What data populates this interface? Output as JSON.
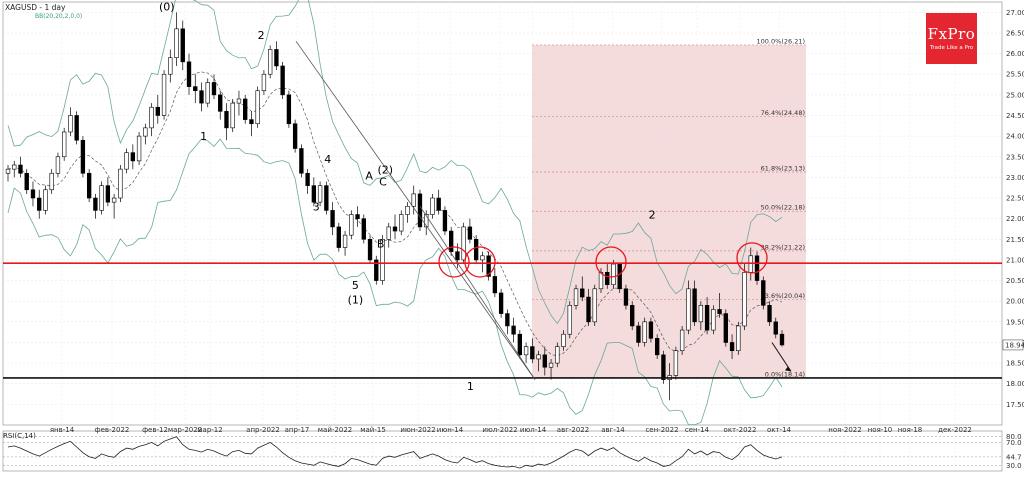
{
  "header": {
    "symbol_title": "XAGUSD - 1 day",
    "indicator_label": "BB(20,20,2,0,0)"
  },
  "logo": {
    "brand": "FxPro",
    "tagline": "Trade Like a Pro"
  },
  "rsi_panel": {
    "label": "RSI(C,14)",
    "levels": [
      "80.0",
      "70.0",
      "44.7",
      "30.0"
    ]
  },
  "chart_data": {
    "type": "candlestick",
    "title": "XAGUSD - 1 day",
    "ylim": [
      17.0,
      27.25
    ],
    "y_ticks": [
      "27.00",
      "26.50",
      "26.00",
      "25.50",
      "25.00",
      "24.50",
      "24.00",
      "23.50",
      "23.00",
      "22.50",
      "22.00",
      "21.50",
      "21.00",
      "20.50",
      "20.00",
      "19.50",
      "19.00",
      "18.50",
      "18.00",
      "17.50"
    ],
    "x_ticks": [
      "янв-14",
      "фев-2022",
      "фев-12",
      "мар-2022",
      "мар-12",
      "апр-2022",
      "апр-17",
      "май-2022",
      "май-15",
      "июн-2022",
      "июн-14",
      "июл-2022",
      "июл-14",
      "авг-2022",
      "авг-14",
      "сен-2022",
      "сен-14",
      "окт-2022",
      "окт-14",
      "ноя-2022",
      "ноя-10",
      "ноя-18",
      "дек-2022"
    ],
    "last_price_label": "18.94",
    "grid": true,
    "horizontal_lines": [
      {
        "name": "resistance",
        "price": 20.92,
        "color": "#e8171f"
      },
      {
        "name": "support",
        "price": 18.14,
        "color": "#111111"
      }
    ],
    "fibonacci_levels": [
      {
        "label": "100.0%(26.21)",
        "price": 26.21
      },
      {
        "label": "76.4%(24.48)",
        "price": 24.48
      },
      {
        "label": "61.8%(23.13)",
        "price": 23.13
      },
      {
        "label": "50.0%(22.18)",
        "price": 22.18
      },
      {
        "label": "38.2%(21.22)",
        "price": 21.22
      },
      {
        "label": "23.6%(20.04)",
        "price": 20.04
      },
      {
        "label": "0.0%(18.14)",
        "price": 18.14
      }
    ],
    "fib_zone_color": "#f2d5d6",
    "wave_labels": [
      {
        "text": "(0)",
        "date": "2022-03-08",
        "price": 27.05
      },
      {
        "text": "1",
        "date": "2022-03-24",
        "price": 23.9
      },
      {
        "text": "2",
        "date": "2022-04-18",
        "price": 26.35
      },
      {
        "text": "3",
        "date": "2022-05-12",
        "price": 22.2
      },
      {
        "text": "4",
        "date": "2022-05-17",
        "price": 23.35
      },
      {
        "text": "5",
        "date": "2022-05-29",
        "price": 20.3
      },
      {
        "text": "(1)",
        "date": "2022-05-29",
        "price": 19.95
      },
      {
        "text": "A",
        "date": "2022-06-04",
        "price": 22.95
      },
      {
        "text": "B",
        "date": "2022-06-09",
        "price": 21.3
      },
      {
        "text": "C",
        "date": "2022-06-10",
        "price": 22.8
      },
      {
        "text": "(2)",
        "date": "2022-06-11",
        "price": 23.1
      },
      {
        "text": "1",
        "date": "2022-07-18",
        "price": 17.85
      },
      {
        "text": "2",
        "date": "2022-10-05",
        "price": 22.0
      }
    ],
    "candles_ohlc": [
      [
        23.1,
        23.3,
        22.9,
        23.2
      ],
      [
        23.2,
        23.4,
        23.0,
        23.3
      ],
      [
        23.3,
        23.5,
        23.0,
        23.1
      ],
      [
        23.1,
        23.2,
        22.6,
        22.7
      ],
      [
        22.7,
        22.9,
        22.3,
        22.5
      ],
      [
        22.5,
        22.7,
        22.0,
        22.2
      ],
      [
        22.2,
        22.8,
        22.1,
        22.7
      ],
      [
        22.7,
        23.2,
        22.6,
        23.1
      ],
      [
        23.1,
        23.6,
        23.0,
        23.5
      ],
      [
        23.5,
        24.2,
        23.4,
        24.1
      ],
      [
        24.1,
        24.7,
        24.0,
        24.5
      ],
      [
        24.5,
        24.6,
        23.8,
        23.9
      ],
      [
        23.9,
        24.0,
        23.0,
        23.1
      ],
      [
        23.1,
        23.2,
        22.4,
        22.5
      ],
      [
        22.5,
        22.6,
        22.0,
        22.2
      ],
      [
        22.2,
        22.9,
        22.1,
        22.8
      ],
      [
        22.8,
        23.0,
        22.3,
        22.4
      ],
      [
        22.4,
        22.6,
        22.0,
        22.5
      ],
      [
        22.5,
        23.3,
        22.4,
        23.2
      ],
      [
        23.2,
        23.7,
        23.1,
        23.6
      ],
      [
        23.6,
        23.8,
        23.2,
        23.4
      ],
      [
        23.4,
        24.1,
        23.3,
        24.0
      ],
      [
        24.0,
        24.3,
        23.8,
        24.2
      ],
      [
        24.2,
        24.8,
        24.0,
        24.7
      ],
      [
        24.7,
        25.0,
        24.3,
        24.5
      ],
      [
        24.5,
        25.6,
        24.4,
        25.5
      ],
      [
        25.5,
        26.1,
        25.3,
        25.9
      ],
      [
        25.9,
        27.0,
        25.7,
        26.6
      ],
      [
        26.6,
        26.8,
        25.6,
        25.8
      ],
      [
        25.8,
        26.0,
        25.0,
        25.2
      ],
      [
        25.2,
        25.5,
        24.8,
        25.1
      ],
      [
        25.1,
        25.3,
        24.6,
        24.8
      ],
      [
        24.8,
        25.4,
        24.7,
        25.3
      ],
      [
        25.3,
        25.5,
        24.9,
        25.0
      ],
      [
        25.0,
        25.1,
        24.4,
        24.6
      ],
      [
        24.6,
        24.8,
        23.9,
        24.2
      ],
      [
        24.2,
        24.9,
        24.1,
        24.8
      ],
      [
        24.8,
        25.1,
        24.5,
        24.9
      ],
      [
        24.9,
        25.0,
        24.3,
        24.4
      ],
      [
        24.4,
        24.6,
        24.0,
        24.3
      ],
      [
        24.3,
        25.2,
        24.2,
        25.1
      ],
      [
        25.1,
        25.6,
        25.0,
        25.5
      ],
      [
        25.5,
        26.2,
        25.4,
        26.1
      ],
      [
        26.1,
        26.3,
        25.6,
        25.7
      ],
      [
        25.7,
        25.8,
        24.9,
        25.0
      ],
      [
        25.0,
        25.1,
        24.2,
        24.3
      ],
      [
        24.3,
        24.4,
        23.6,
        23.7
      ],
      [
        23.7,
        23.8,
        23.0,
        23.1
      ],
      [
        23.1,
        23.2,
        22.6,
        22.8
      ],
      [
        22.8,
        23.0,
        22.3,
        22.4
      ],
      [
        22.4,
        22.9,
        22.3,
        22.8
      ],
      [
        22.8,
        22.9,
        22.1,
        22.2
      ],
      [
        22.2,
        22.4,
        21.6,
        21.8
      ],
      [
        21.8,
        21.9,
        21.2,
        21.3
      ],
      [
        21.3,
        21.7,
        21.1,
        21.6
      ],
      [
        21.6,
        22.2,
        21.5,
        22.1
      ],
      [
        22.1,
        22.3,
        21.8,
        22.0
      ],
      [
        22.0,
        22.1,
        21.4,
        21.5
      ],
      [
        21.5,
        21.6,
        20.9,
        21.0
      ],
      [
        21.0,
        21.1,
        20.4,
        20.5
      ],
      [
        20.5,
        21.6,
        20.4,
        21.5
      ],
      [
        21.5,
        21.9,
        21.3,
        21.8
      ],
      [
        21.8,
        22.1,
        21.5,
        21.7
      ],
      [
        21.7,
        22.2,
        21.6,
        22.1
      ],
      [
        22.1,
        22.4,
        21.9,
        22.3
      ],
      [
        22.3,
        22.8,
        22.1,
        22.6
      ],
      [
        22.6,
        22.7,
        21.7,
        21.8
      ],
      [
        21.8,
        22.2,
        21.6,
        22.1
      ],
      [
        22.1,
        22.6,
        22.0,
        22.5
      ],
      [
        22.5,
        22.7,
        22.1,
        22.2
      ],
      [
        22.2,
        22.3,
        21.6,
        21.7
      ],
      [
        21.7,
        21.8,
        21.1,
        21.2
      ],
      [
        21.2,
        21.4,
        20.8,
        21.0
      ],
      [
        21.0,
        21.9,
        20.9,
        21.8
      ],
      [
        21.8,
        22.0,
        21.4,
        21.5
      ],
      [
        21.5,
        21.6,
        20.9,
        21.0
      ],
      [
        21.0,
        21.2,
        20.7,
        21.1
      ],
      [
        21.1,
        21.2,
        20.5,
        20.6
      ],
      [
        20.6,
        20.8,
        20.1,
        20.2
      ],
      [
        20.2,
        20.3,
        19.6,
        19.7
      ],
      [
        19.7,
        19.8,
        19.2,
        19.4
      ],
      [
        19.4,
        19.6,
        19.0,
        19.2
      ],
      [
        19.2,
        19.3,
        18.6,
        18.7
      ],
      [
        18.7,
        19.0,
        18.5,
        18.9
      ],
      [
        18.9,
        19.1,
        18.5,
        18.6
      ],
      [
        18.6,
        18.8,
        18.3,
        18.7
      ],
      [
        18.7,
        18.9,
        18.2,
        18.4
      ],
      [
        18.4,
        18.6,
        18.1,
        18.5
      ],
      [
        18.5,
        19.0,
        18.4,
        18.9
      ],
      [
        18.9,
        19.3,
        18.8,
        19.2
      ],
      [
        19.2,
        20.0,
        19.1,
        19.9
      ],
      [
        19.9,
        20.4,
        19.8,
        20.3
      ],
      [
        20.3,
        20.6,
        20.0,
        20.1
      ],
      [
        20.1,
        20.3,
        19.4,
        19.5
      ],
      [
        19.5,
        20.4,
        19.4,
        20.3
      ],
      [
        20.3,
        20.8,
        20.2,
        20.7
      ],
      [
        20.7,
        20.9,
        20.3,
        20.4
      ],
      [
        20.4,
        21.0,
        20.3,
        20.9
      ],
      [
        20.9,
        20.9,
        20.2,
        20.3
      ],
      [
        20.3,
        20.4,
        19.8,
        19.9
      ],
      [
        19.9,
        20.0,
        19.3,
        19.4
      ],
      [
        19.4,
        19.5,
        18.9,
        19.0
      ],
      [
        19.0,
        19.6,
        18.9,
        19.5
      ],
      [
        19.5,
        19.6,
        19.0,
        19.1
      ],
      [
        19.1,
        19.2,
        18.6,
        18.7
      ],
      [
        18.7,
        18.8,
        18.0,
        18.1
      ],
      [
        18.1,
        18.5,
        17.6,
        18.2
      ],
      [
        18.2,
        18.9,
        18.1,
        18.8
      ],
      [
        18.8,
        19.4,
        18.7,
        19.3
      ],
      [
        19.3,
        20.5,
        19.2,
        20.3
      ],
      [
        20.3,
        20.5,
        19.4,
        19.5
      ],
      [
        19.5,
        20.0,
        19.3,
        19.9
      ],
      [
        19.9,
        20.1,
        19.2,
        19.3
      ],
      [
        19.3,
        19.9,
        19.2,
        19.8
      ],
      [
        19.8,
        20.2,
        19.6,
        19.7
      ],
      [
        19.7,
        19.8,
        18.9,
        19.0
      ],
      [
        19.0,
        19.2,
        18.6,
        18.8
      ],
      [
        18.8,
        19.5,
        18.7,
        19.4
      ],
      [
        19.4,
        20.9,
        19.3,
        20.7
      ],
      [
        20.7,
        21.3,
        20.5,
        21.1
      ],
      [
        21.1,
        21.2,
        20.4,
        20.5
      ],
      [
        20.5,
        20.6,
        19.8,
        19.9
      ],
      [
        19.9,
        20.0,
        19.4,
        19.5
      ],
      [
        19.5,
        19.6,
        19.1,
        19.2
      ],
      [
        19.2,
        19.3,
        18.9,
        18.94
      ]
    ],
    "rsi_values": [
      62,
      64,
      60,
      55,
      50,
      46,
      52,
      58,
      63,
      68,
      72,
      62,
      52,
      45,
      42,
      50,
      46,
      44,
      54,
      60,
      58,
      63,
      66,
      70,
      64,
      72,
      76,
      80,
      66,
      58,
      56,
      53,
      58,
      55,
      50,
      46,
      54,
      56,
      51,
      50,
      60,
      65,
      70,
      62,
      52,
      44,
      38,
      34,
      32,
      30,
      36,
      33,
      30,
      28,
      33,
      42,
      40,
      36,
      32,
      30,
      42,
      46,
      44,
      48,
      51,
      54,
      42,
      46,
      50,
      46,
      40,
      36,
      34,
      44,
      40,
      35,
      38,
      33,
      30,
      28,
      27,
      28,
      25,
      30,
      28,
      32,
      30,
      34,
      40,
      46,
      53,
      58,
      55,
      47,
      55,
      60,
      56,
      61,
      52,
      46,
      41,
      37,
      44,
      38,
      34,
      28,
      30,
      38,
      45,
      58,
      50,
      55,
      48,
      54,
      52,
      44,
      40,
      48,
      62,
      66,
      56,
      48,
      44,
      41,
      44.7
    ]
  }
}
